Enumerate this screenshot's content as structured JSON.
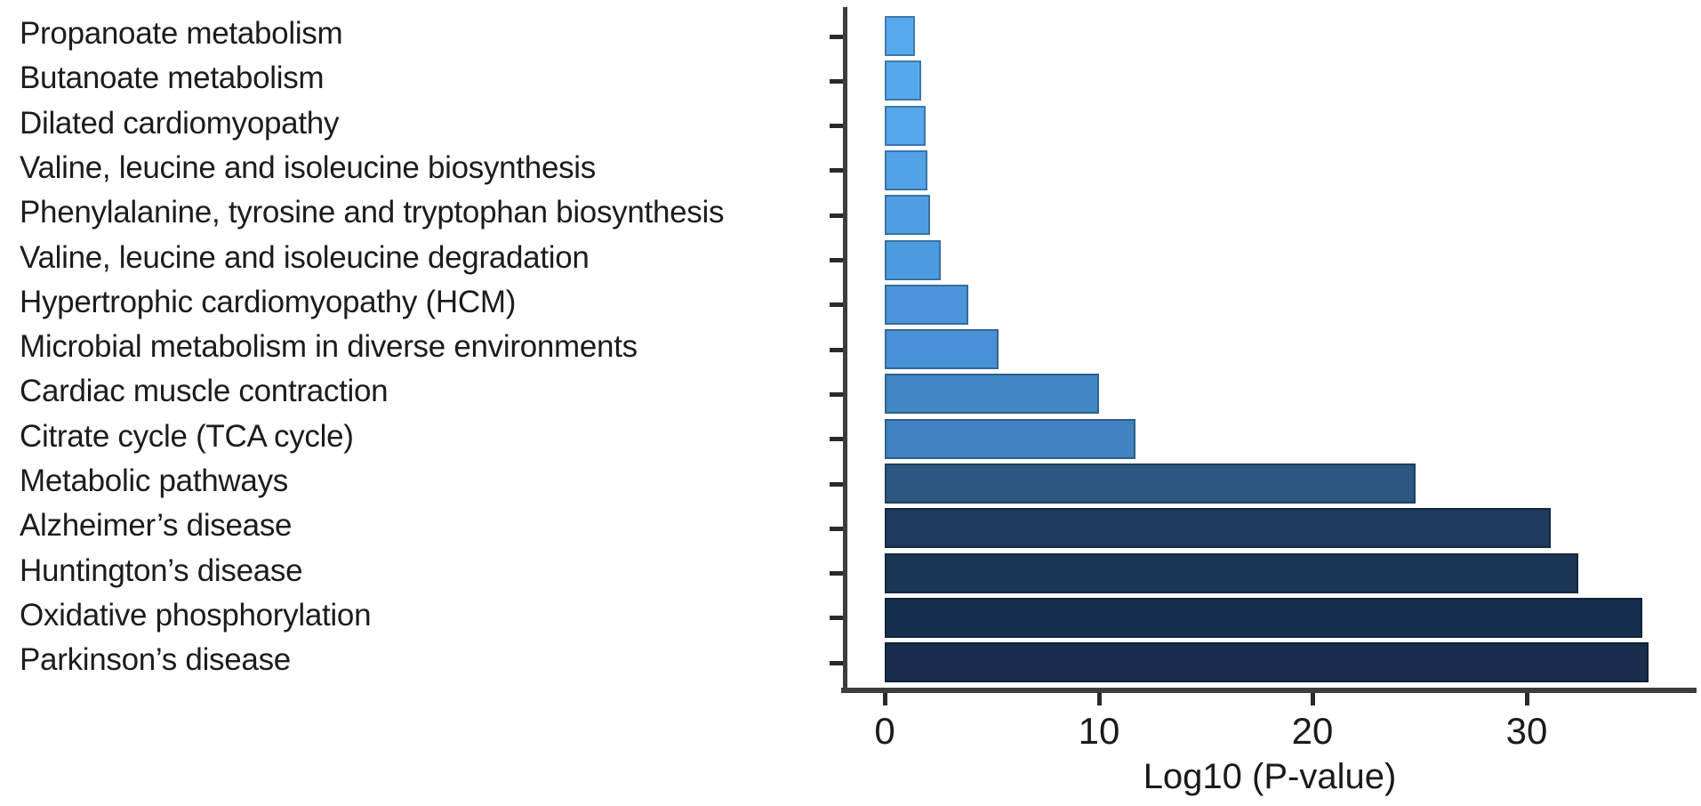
{
  "chart_data": {
    "type": "bar",
    "orientation": "horizontal",
    "title": "",
    "xlabel": "Log10 (P-value)",
    "ylabel": "",
    "xlim": [
      0,
      38
    ],
    "grid": false,
    "legend": "none",
    "x_ticks": [
      0,
      10,
      20,
      30
    ],
    "x_tick_labels": [
      "0",
      "10",
      "20",
      "30"
    ],
    "categories": [
      "Propanoate metabolism",
      "Butanoate metabolism",
      "Dilated cardiomyopathy",
      "Valine, leucine and isoleucine biosynthesis",
      "Phenylalanine, tyrosine and tryptophan biosynthesis",
      "Valine, leucine and isoleucine degradation",
      "Hypertrophic cardiomyopathy (HCM)",
      "Microbial metabolism in diverse environments",
      "Cardiac muscle contraction",
      "Citrate cycle (TCA cycle)",
      "Metabolic pathways",
      "Alzheimer’s disease",
      "Huntington’s disease",
      "Oxidative phosphorylation",
      "Parkinson’s disease"
    ],
    "values": [
      1.4,
      1.7,
      1.9,
      2.0,
      2.1,
      2.6,
      3.9,
      5.3,
      10.0,
      11.7,
      24.8,
      31.1,
      32.4,
      35.4,
      35.7
    ],
    "bar_colors": [
      "#58aaee",
      "#56a8ec",
      "#55a6ea",
      "#52a2e6",
      "#4f9ee2",
      "#4c9bdf",
      "#4a96d9",
      "#4791d4",
      "#4286c3",
      "#4083c0",
      "#2b5780",
      "#1e3a5c",
      "#1c3756",
      "#162f4e",
      "#172f4d"
    ],
    "axis_color": "#3d3d3d",
    "text_color": "#1a1a1a",
    "color_scale_note": "bars shade light blue (small values) to dark navy (large values)"
  }
}
